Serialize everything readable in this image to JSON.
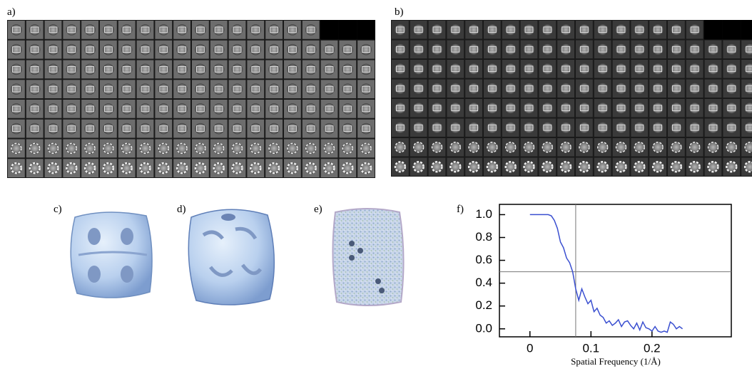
{
  "panel_labels": [
    "a)",
    "b)",
    "c)",
    "d)",
    "e)",
    "f)"
  ],
  "chart_data": {
    "type": "line",
    "x_label": "Spatial Frequency (1/Å)",
    "xlim": [
      -0.05,
      0.33
    ],
    "ylim": [
      -0.07,
      1.09
    ],
    "xticks": [
      0,
      0.1,
      0.2
    ],
    "yticks": [
      {
        "value": 0,
        "label": "0.0"
      },
      0.2,
      0.4,
      0.6,
      0.8,
      {
        "value": 1,
        "label": "1.0"
      }
    ],
    "vline": 0.075,
    "hline": 0.5,
    "x": [
      0,
      0.01,
      0.02,
      0.03,
      0.035,
      0.04,
      0.045,
      0.05,
      0.055,
      0.06,
      0.065,
      0.07,
      0.075,
      0.08,
      0.085,
      0.09,
      0.095,
      0.1,
      0.105,
      0.11,
      0.115,
      0.12,
      0.125,
      0.13,
      0.135,
      0.14,
      0.145,
      0.15,
      0.155,
      0.16,
      0.165,
      0.17,
      0.175,
      0.18,
      0.185,
      0.19,
      0.195,
      0.2,
      0.205,
      0.21,
      0.215,
      0.22,
      0.225,
      0.23,
      0.235,
      0.24,
      0.245,
      0.25
    ],
    "series": [
      {
        "color": "#3a4fd0",
        "values": [
          1.0,
          1.0,
          1.0,
          1.0,
          0.99,
          0.95,
          0.88,
          0.76,
          0.71,
          0.62,
          0.58,
          0.5,
          0.35,
          0.25,
          0.35,
          0.28,
          0.22,
          0.25,
          0.15,
          0.18,
          0.12,
          0.1,
          0.05,
          0.07,
          0.03,
          0.05,
          0.08,
          0.02,
          0.06,
          0.07,
          0.03,
          0.0,
          0.05,
          -0.01,
          0.06,
          0.01,
          0.0,
          -0.02,
          0.02,
          -0.02,
          -0.03,
          -0.02,
          -0.03,
          0.06,
          0.04,
          0.0,
          0.02,
          0.0
        ]
      }
    ]
  }
}
